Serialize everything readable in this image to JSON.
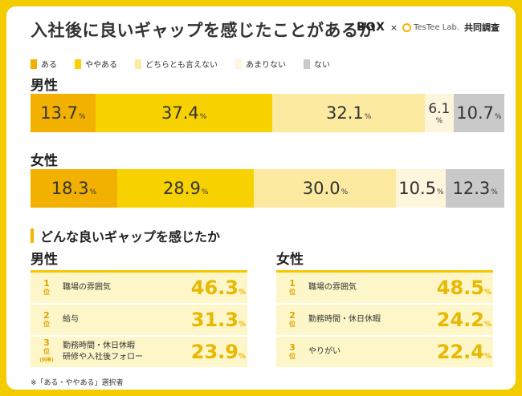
{
  "title": "入社後に良いギャップを感じたことがあるか",
  "brand": {
    "box": "BOX",
    "times": "×",
    "testee": "TesTee Lab.",
    "joint": "共同調査"
  },
  "legend": [
    {
      "label": "ある",
      "color": "#f2b100"
    },
    {
      "label": "ややある",
      "color": "#f7d200"
    },
    {
      "label": "どちらとも言えない",
      "color": "#fbeaa0"
    },
    {
      "label": "あまりない",
      "color": "#fdf5dc"
    },
    {
      "label": "ない",
      "color": "#c9c9c9"
    }
  ],
  "chart_data": {
    "type": "bar",
    "stacked": true,
    "orientation": "horizontal",
    "categories": [
      "ある",
      "ややある",
      "どちらとも言えない",
      "あまりない",
      "ない"
    ],
    "series": [
      {
        "name": "男性",
        "values": [
          13.7,
          37.4,
          32.1,
          6.1,
          10.7
        ]
      },
      {
        "name": "女性",
        "values": [
          18.3,
          28.9,
          30.0,
          10.5,
          12.3
        ]
      }
    ],
    "value_labels": {
      "男性": [
        "13.7",
        "37.4",
        "32.1",
        "6.1",
        "10.7"
      ],
      "女性": [
        "18.3",
        "28.9",
        "30.0",
        "10.5",
        "12.3"
      ]
    },
    "unit": "%"
  },
  "section_title": "どんな良いギャップを感じたか",
  "rankings": {
    "rank_unit": "位",
    "tie_note": "(同率)",
    "percent": "%",
    "male": {
      "title": "男性",
      "rows": [
        {
          "rank": "1",
          "label": "職場の雰囲気",
          "label2": "",
          "value": "46.3"
        },
        {
          "rank": "2",
          "label": "給与",
          "label2": "",
          "value": "31.3"
        },
        {
          "rank": "3",
          "label": "勤務時間・休日休暇",
          "label2": "研修や入社後フォロー",
          "value": "23.9"
        }
      ]
    },
    "female": {
      "title": "女性",
      "rows": [
        {
          "rank": "1",
          "label": "職場の雰囲気",
          "label2": "",
          "value": "48.5"
        },
        {
          "rank": "2",
          "label": "勤務時間・休日休暇",
          "label2": "",
          "value": "24.2"
        },
        {
          "rank": "3",
          "label": "やりがい",
          "label2": "",
          "value": "22.4"
        }
      ]
    }
  },
  "footnote": "※「ある・ややある」選択者"
}
